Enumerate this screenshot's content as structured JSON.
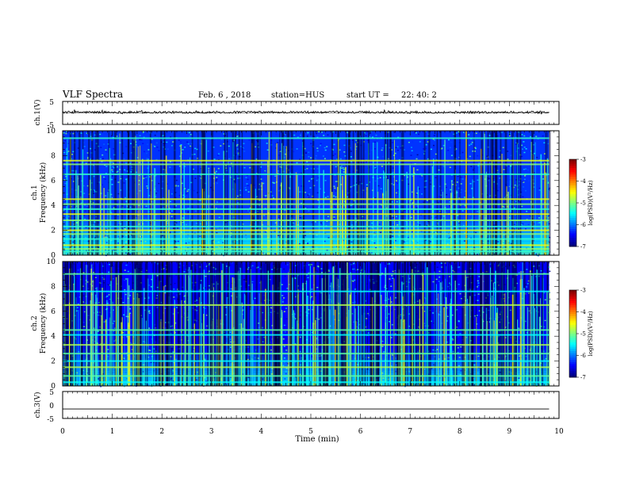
{
  "header": {
    "title": "VLF Spectra",
    "date": "Feb. 6 , 2018",
    "station": "station=HUS",
    "start_label": "start  UT  =",
    "start_time": "22: 40: 2"
  },
  "chart_data": [
    {
      "type": "line",
      "name": "ch.1 waveform",
      "ylabel": "ch.1(V)",
      "ylim": [
        -5,
        5
      ],
      "yticks": [
        "5",
        "-5"
      ],
      "xlim": [
        0,
        10
      ],
      "x": [
        0,
        9.8
      ],
      "y_level": 0.3,
      "noise_amplitude": 0.5
    },
    {
      "type": "heatmap",
      "name": "ch.1 spectrogram",
      "ylabel": "ch.1 Frequency (kHz)",
      "ylim": [
        0,
        10
      ],
      "yticks": [
        "0",
        "2",
        "4",
        "6",
        "8",
        "10"
      ],
      "xlim": [
        0,
        10
      ],
      "data_end": 9.8,
      "colorbar_label": "log(PSD)(V²/Hz)",
      "colorbar_range": [
        -7,
        -3
      ],
      "colorbar_ticks": [
        "-3",
        "-4",
        "-5",
        "-6",
        "-7"
      ],
      "bands_khz": [
        0.3,
        0.5,
        0.8,
        1.3,
        1.7,
        2.0,
        2.3,
        2.8,
        3.3,
        3.7,
        4.1,
        4.5,
        6.5,
        7.3,
        7.6,
        9.4
      ],
      "background_level": -6.3
    },
    {
      "type": "heatmap",
      "name": "ch.2 spectrogram",
      "ylabel": "ch.2 Frequency (kHz)",
      "ylim": [
        0,
        10
      ],
      "yticks": [
        "0",
        "2",
        "4",
        "6",
        "8",
        "10"
      ],
      "xlim": [
        0,
        10
      ],
      "data_end": 9.8,
      "colorbar_label": "log(PSD)(V²/Hz)",
      "colorbar_range": [
        -7,
        -3
      ],
      "colorbar_ticks": [
        "-3",
        "-4",
        "-5",
        "-6",
        "-7"
      ],
      "bands_khz": [
        0.3,
        0.8,
        1.5,
        2.0,
        2.6,
        3.3,
        4.1,
        4.5,
        6.5,
        7.6,
        9.0
      ],
      "background_level": -6.5
    },
    {
      "type": "line",
      "name": "ch.3 waveform",
      "ylabel": "ch.3(V)",
      "ylim": [
        -5,
        5
      ],
      "yticks": [
        "5",
        "0",
        "-5"
      ],
      "xlim": [
        0,
        10
      ],
      "x": [
        0,
        9.8
      ],
      "y_level": -1.5,
      "noise_amplitude": 0
    }
  ],
  "xaxis": {
    "label": "Time  (min)",
    "ticks": [
      "0",
      "1",
      "2",
      "3",
      "4",
      "5",
      "6",
      "7",
      "8",
      "9",
      "10"
    ]
  }
}
